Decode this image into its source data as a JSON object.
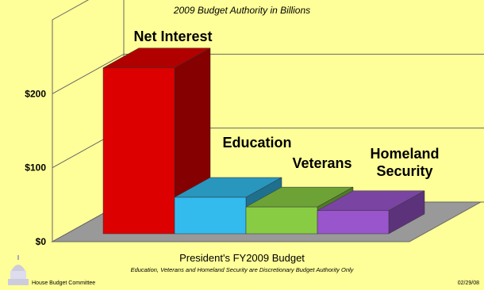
{
  "chart_data": {
    "type": "bar",
    "title": "2009 Budget Authority in Billions",
    "xlabel": "President's FY2009 Budget",
    "ylabel": "",
    "ylim": [
      0,
      300
    ],
    "yticks": [
      {
        "value": 0,
        "label": "$0"
      },
      {
        "value": 100,
        "label": "$100"
      },
      {
        "value": 200,
        "label": "$200"
      }
    ],
    "categories": [
      "Net Interest",
      "Education",
      "Veterans",
      "Homeland Security"
    ],
    "values": [
      235,
      60,
      47,
      42
    ],
    "colors": [
      "#dd0000",
      "#33bbee",
      "#88cc44",
      "#9955cc"
    ],
    "legend": "none",
    "grid": true,
    "annotation": "Education, Veterans and Homeland Security are Discretionary Budget Authority Only"
  },
  "footer": {
    "org": "House Budget Committee",
    "date": "02/29/08"
  }
}
